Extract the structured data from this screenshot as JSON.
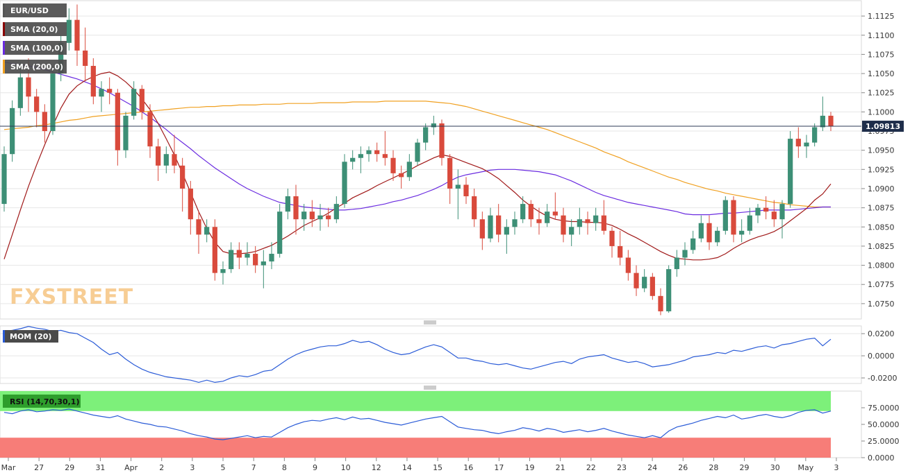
{
  "brand": "FXSTREET",
  "price_tag": "1.09813",
  "legend": [
    {
      "label": "EUR/USD",
      "color": "#555555"
    },
    {
      "label": "SMA (20,0)",
      "color": "#8b0000"
    },
    {
      "label": "SMA (100,0)",
      "color": "#6a2be0"
    },
    {
      "label": "SMA (200,0)",
      "color": "#f0a020"
    }
  ],
  "mom_label": "MOM (20)",
  "rsi_label": "RSI (14,70,30,1)",
  "colors": {
    "bull": "#3d8f76",
    "bear": "#d94a3c",
    "sma20": "#a01818",
    "sma100": "#6a2be0",
    "sma200": "#f0a020",
    "mom": "#2a5bd7",
    "rsi": "#2a5bd7",
    "overbought": "#7df07a",
    "oversold": "#f77d78"
  },
  "chart_data": [
    {
      "type": "candlestick",
      "title": "EUR/USD",
      "ylim": [
        1.073,
        1.1145
      ],
      "y_ticks": [
        "1.1125",
        "1.1100",
        "1.1075",
        "1.1050",
        "1.1025",
        "1.1000",
        "1.0975",
        "1.0950",
        "1.0925",
        "1.0900",
        "1.0875",
        "1.0850",
        "1.0825",
        "1.0800",
        "1.0775",
        "1.0750"
      ],
      "x_tick_labels": [
        "Mar",
        "27",
        "29",
        "31",
        "Apr",
        "2",
        "3",
        "5",
        "7",
        "8",
        "9",
        "10",
        "12",
        "14",
        "15",
        "16",
        "17",
        "19",
        "21",
        "22",
        "23",
        "24",
        "26",
        "28",
        "29",
        "30",
        "May",
        "3"
      ],
      "last_price": 1.09813,
      "ohlc": [
        [
          1.088,
          1.0955,
          1.087,
          1.0945
        ],
        [
          1.0945,
          1.1015,
          1.0935,
          1.1005
        ],
        [
          1.1005,
          1.1065,
          1.0995,
          1.1045
        ],
        [
          1.1045,
          1.107,
          1.1,
          1.102
        ],
        [
          1.102,
          1.103,
          1.098,
          1.1
        ],
        [
          1.1,
          1.101,
          1.096,
          1.0975
        ],
        [
          1.0975,
          1.106,
          1.097,
          1.105
        ],
        [
          1.105,
          1.11,
          1.104,
          1.109
        ],
        [
          1.109,
          1.1135,
          1.108,
          1.112
        ],
        [
          1.112,
          1.114,
          1.106,
          1.108
        ],
        [
          1.108,
          1.111,
          1.104,
          1.106
        ],
        [
          1.106,
          1.107,
          1.101,
          1.102
        ],
        [
          1.102,
          1.104,
          1.1,
          1.103
        ],
        [
          1.103,
          1.1045,
          1.101,
          1.1025
        ],
        [
          1.1025,
          1.103,
          1.093,
          1.095
        ],
        [
          1.095,
          1.1,
          1.094,
          1.0995
        ],
        [
          1.0995,
          1.104,
          1.099,
          1.103
        ],
        [
          1.103,
          1.1035,
          1.099,
          1.1
        ],
        [
          1.1,
          1.101,
          1.094,
          1.0955
        ],
        [
          1.0955,
          1.0965,
          1.091,
          1.093
        ],
        [
          1.093,
          1.0955,
          1.092,
          1.0945
        ],
        [
          1.0945,
          1.097,
          1.092,
          1.093
        ],
        [
          1.093,
          1.094,
          1.087,
          1.09
        ],
        [
          1.09,
          1.091,
          1.084,
          1.086
        ],
        [
          1.086,
          1.087,
          1.0815,
          1.084
        ],
        [
          1.084,
          1.086,
          1.083,
          1.085
        ],
        [
          1.085,
          1.086,
          1.078,
          1.079
        ],
        [
          1.079,
          1.0805,
          1.0775,
          1.0795
        ],
        [
          1.0795,
          1.083,
          1.079,
          1.082
        ],
        [
          1.082,
          1.083,
          1.0795,
          1.081
        ],
        [
          1.081,
          1.083,
          1.08,
          1.0815
        ],
        [
          1.0815,
          1.0825,
          1.079,
          1.08
        ],
        [
          1.08,
          1.082,
          1.077,
          1.0805
        ],
        [
          1.0805,
          1.083,
          1.0795,
          1.0815
        ],
        [
          1.0815,
          1.088,
          1.081,
          1.087
        ],
        [
          1.087,
          1.09,
          1.086,
          1.089
        ],
        [
          1.089,
          1.0905,
          1.084,
          1.086
        ],
        [
          1.086,
          1.088,
          1.0845,
          1.087
        ],
        [
          1.087,
          1.0885,
          1.085,
          1.086
        ],
        [
          1.086,
          1.088,
          1.0845,
          1.0865
        ],
        [
          1.0865,
          1.0875,
          1.085,
          1.086
        ],
        [
          1.086,
          1.089,
          1.0855,
          1.088
        ],
        [
          1.088,
          1.0945,
          1.0875,
          1.0935
        ],
        [
          1.0935,
          1.095,
          1.0925,
          1.094
        ],
        [
          1.094,
          1.0955,
          1.092,
          1.0945
        ],
        [
          1.0945,
          1.0955,
          1.0935,
          1.095
        ],
        [
          1.095,
          1.096,
          1.0935,
          1.0945
        ],
        [
          1.0945,
          1.0975,
          1.093,
          1.094
        ],
        [
          1.094,
          1.095,
          1.091,
          1.092
        ],
        [
          1.092,
          1.093,
          1.09,
          1.0915
        ],
        [
          1.0915,
          1.0945,
          1.091,
          1.0935
        ],
        [
          1.0935,
          1.0965,
          1.093,
          1.096
        ],
        [
          1.096,
          1.0985,
          1.095,
          1.098
        ],
        [
          1.098,
          1.0995,
          1.097,
          1.0985
        ],
        [
          1.0985,
          1.099,
          1.093,
          1.094
        ],
        [
          1.094,
          1.0945,
          1.088,
          1.09
        ],
        [
          1.09,
          1.0925,
          1.086,
          1.0905
        ],
        [
          1.0905,
          1.0915,
          1.088,
          1.089
        ],
        [
          1.089,
          1.09,
          1.085,
          1.086
        ],
        [
          1.086,
          1.087,
          1.082,
          1.0835
        ],
        [
          1.0835,
          1.0875,
          1.083,
          1.0865
        ],
        [
          1.0865,
          1.088,
          1.083,
          1.084
        ],
        [
          1.084,
          1.086,
          1.0815,
          1.085
        ],
        [
          1.085,
          1.087,
          1.084,
          1.086
        ],
        [
          1.086,
          1.089,
          1.0855,
          1.088
        ],
        [
          1.088,
          1.0885,
          1.085,
          1.086
        ],
        [
          1.086,
          1.0875,
          1.084,
          1.0855
        ],
        [
          1.0855,
          1.088,
          1.085,
          1.087
        ],
        [
          1.087,
          1.0895,
          1.086,
          1.0865
        ],
        [
          1.0865,
          1.0875,
          1.083,
          1.084
        ],
        [
          1.084,
          1.086,
          1.0825,
          1.085
        ],
        [
          1.085,
          1.0875,
          1.084,
          1.086
        ],
        [
          1.086,
          1.087,
          1.084,
          1.0855
        ],
        [
          1.0855,
          1.0875,
          1.0845,
          1.0865
        ],
        [
          1.0865,
          1.0885,
          1.084,
          1.0845
        ],
        [
          1.0845,
          1.085,
          1.081,
          1.0825
        ],
        [
          1.0825,
          1.0845,
          1.08,
          1.081
        ],
        [
          1.081,
          1.082,
          1.078,
          1.079
        ],
        [
          1.079,
          1.08,
          1.076,
          1.077
        ],
        [
          1.077,
          1.0795,
          1.0765,
          1.0785
        ],
        [
          1.0785,
          1.079,
          1.0755,
          1.076
        ],
        [
          1.076,
          1.077,
          1.0735,
          1.074
        ],
        [
          1.074,
          1.08,
          1.0738,
          1.0795
        ],
        [
          1.0795,
          1.082,
          1.0785,
          1.081
        ],
        [
          1.081,
          1.083,
          1.08,
          1.082
        ],
        [
          1.082,
          1.0845,
          1.0815,
          1.0835
        ],
        [
          1.0835,
          1.0865,
          1.083,
          1.0855
        ],
        [
          1.0855,
          1.0865,
          1.082,
          1.083
        ],
        [
          1.083,
          1.085,
          1.0825,
          1.0845
        ],
        [
          1.0845,
          1.089,
          1.084,
          1.0885
        ],
        [
          1.0885,
          1.089,
          1.083,
          1.084
        ],
        [
          1.084,
          1.086,
          1.083,
          1.0845
        ],
        [
          1.0845,
          1.0875,
          1.084,
          1.0865
        ],
        [
          1.0865,
          1.088,
          1.0855,
          1.0875
        ],
        [
          1.0875,
          1.089,
          1.086,
          1.087
        ],
        [
          1.087,
          1.0885,
          1.085,
          1.086
        ],
        [
          1.086,
          1.0885,
          1.0835,
          1.088
        ],
        [
          1.088,
          1.0975,
          1.0875,
          1.0965
        ],
        [
          1.0965,
          1.098,
          1.094,
          1.0955
        ],
        [
          1.0955,
          1.097,
          1.094,
          1.096
        ],
        [
          1.096,
          1.0985,
          1.0955,
          1.098
        ],
        [
          1.098,
          1.102,
          1.0975,
          1.0995
        ],
        [
          1.0995,
          1.1,
          1.0975,
          1.0981
        ]
      ],
      "sma20": [
        1.0808,
        1.084,
        1.0872,
        1.0903,
        1.0931,
        1.0957,
        1.0982,
        1.1005,
        1.1023,
        1.1034,
        1.1041,
        1.1046,
        1.105,
        1.1052,
        1.1047,
        1.1039,
        1.1029,
        1.1017,
        1.1003,
        1.0985,
        1.0965,
        1.0944,
        1.092,
        1.0895,
        1.087,
        1.0848,
        1.083,
        1.0818,
        1.0815,
        1.0815,
        1.0816,
        1.0818,
        1.0822,
        1.0826,
        1.0832,
        1.0838,
        1.0845,
        1.0852,
        1.0857,
        1.0862,
        1.0868,
        1.0875,
        1.0881,
        1.0888,
        1.0893,
        1.0898,
        1.0904,
        1.0909,
        1.0914,
        1.0919,
        1.0924,
        1.093,
        1.0935,
        1.094,
        1.0944,
        1.0942,
        1.0938,
        1.0934,
        1.093,
        1.0926,
        1.092,
        1.0913,
        1.0904,
        1.0895,
        1.0885,
        1.0877,
        1.087,
        1.0864,
        1.086,
        1.0858,
        1.0857,
        1.0857,
        1.0856,
        1.0856,
        1.0855,
        1.0852,
        1.0847,
        1.0841,
        1.0836,
        1.083,
        1.0824,
        1.0818,
        1.0813,
        1.0809,
        1.0808,
        1.0807,
        1.0807,
        1.0808,
        1.081,
        1.0815,
        1.0822,
        1.0828,
        1.0833,
        1.0837,
        1.084,
        1.0844,
        1.085,
        1.0858,
        1.0866,
        1.0874,
        1.0885,
        1.0893,
        1.0906
      ],
      "sma100": [
        1.1065,
        1.1063,
        1.1062,
        1.106,
        1.1058,
        1.1055,
        1.1052,
        1.1049,
        1.1046,
        1.1043,
        1.1039,
        1.1035,
        1.103,
        1.1025,
        1.1019,
        1.1013,
        1.1007,
        1.1,
        1.0993,
        1.0985,
        1.0977,
        1.0968,
        1.096,
        1.0952,
        1.0943,
        1.0935,
        1.0927,
        1.092,
        1.0913,
        1.0906,
        1.09,
        1.0895,
        1.089,
        1.0886,
        1.0882,
        1.088,
        1.0878,
        1.0876,
        1.0875,
        1.0874,
        1.0873,
        1.0872,
        1.0872,
        1.0873,
        1.0874,
        1.0876,
        1.0878,
        1.088,
        1.0883,
        1.0885,
        1.0888,
        1.0891,
        1.0895,
        1.0899,
        1.0904,
        1.091,
        1.0915,
        1.0918,
        1.092,
        1.0922,
        1.0924,
        1.0925,
        1.0925,
        1.0925,
        1.0924,
        1.0923,
        1.0922,
        1.092,
        1.0918,
        1.0914,
        1.091,
        1.0905,
        1.09,
        1.0895,
        1.0891,
        1.0888,
        1.0885,
        1.0882,
        1.088,
        1.0878,
        1.0876,
        1.0874,
        1.0872,
        1.087,
        1.0867,
        1.0866,
        1.0866,
        1.0866,
        1.0867,
        1.0868,
        1.0868,
        1.0869,
        1.087,
        1.0871,
        1.0872,
        1.0872,
        1.0872,
        1.0872,
        1.0873,
        1.0874,
        1.0875,
        1.0876,
        1.0876
      ],
      "sma200": [
        1.0977,
        1.0978,
        1.0979,
        1.098,
        1.0982,
        1.0983,
        1.0985,
        1.0987,
        1.0989,
        1.099,
        1.0992,
        1.0994,
        1.0995,
        1.0996,
        1.0997,
        1.0998,
        1.0999,
        1.1,
        1.1001,
        1.1002,
        1.1003,
        1.1004,
        1.1005,
        1.1006,
        1.1006,
        1.1007,
        1.1007,
        1.1008,
        1.1008,
        1.1009,
        1.1009,
        1.1009,
        1.101,
        1.101,
        1.101,
        1.1011,
        1.1011,
        1.1011,
        1.1011,
        1.1012,
        1.1012,
        1.1012,
        1.1012,
        1.1013,
        1.1013,
        1.1013,
        1.1013,
        1.1014,
        1.1014,
        1.1014,
        1.1014,
        1.1014,
        1.1014,
        1.1013,
        1.1012,
        1.1011,
        1.1009,
        1.1007,
        1.1004,
        1.1001,
        1.0998,
        1.0995,
        1.0992,
        1.0989,
        1.0986,
        1.0983,
        1.098,
        1.0977,
        1.0973,
        1.0969,
        1.0965,
        1.0961,
        1.0957,
        1.0953,
        1.0948,
        1.0944,
        1.094,
        1.0935,
        1.0931,
        1.0927,
        1.0923,
        1.0919,
        1.0915,
        1.0912,
        1.0908,
        1.0905,
        1.0902,
        1.0899,
        1.0897,
        1.0894,
        1.0892,
        1.089,
        1.0888,
        1.0886,
        1.0884,
        1.0882,
        1.0881,
        1.0879,
        1.0878,
        1.0877,
        1.0876,
        1.0876,
        1.0876
      ]
    },
    {
      "type": "line",
      "title": "MOM (20)",
      "ylim": [
        -0.025,
        0.027
      ],
      "y_ticks": [
        "0.0200",
        "0.0000",
        "-0.0200"
      ],
      "values": [
        0.022,
        0.023,
        0.0245,
        0.0265,
        0.025,
        0.024,
        0.022,
        0.023,
        0.021,
        0.02,
        0.016,
        0.012,
        0.006,
        0.001,
        0.003,
        -0.003,
        -0.008,
        -0.012,
        -0.015,
        -0.017,
        -0.019,
        -0.02,
        -0.021,
        -0.022,
        -0.024,
        -0.022,
        -0.024,
        -0.023,
        -0.02,
        -0.018,
        -0.019,
        -0.017,
        -0.014,
        -0.013,
        -0.008,
        -0.003,
        0.001,
        0.004,
        0.006,
        0.008,
        0.009,
        0.009,
        0.011,
        0.014,
        0.012,
        0.013,
        0.01,
        0.006,
        0.003,
        0.001,
        0.002,
        0.005,
        0.008,
        0.01,
        0.008,
        0.003,
        -0.002,
        -0.002,
        -0.004,
        -0.005,
        -0.007,
        -0.008,
        -0.007,
        -0.009,
        -0.011,
        -0.012,
        -0.01,
        -0.008,
        -0.006,
        -0.005,
        -0.007,
        -0.003,
        -0.001,
        0.0,
        0.001,
        -0.002,
        -0.004,
        -0.006,
        -0.005,
        -0.007,
        -0.01,
        -0.009,
        -0.008,
        -0.006,
        -0.004,
        -0.001,
        0.0,
        0.001,
        0.003,
        0.002,
        0.005,
        0.004,
        0.006,
        0.008,
        0.009,
        0.007,
        0.01,
        0.011,
        0.013,
        0.015,
        0.016,
        0.009,
        0.015
      ]
    },
    {
      "type": "line",
      "title": "RSI (14,70,30,1)",
      "ylim": [
        0,
        100
      ],
      "y_ticks": [
        "75.0000",
        "50.0000",
        "25.0000",
        "0.0000"
      ],
      "overbought": 70,
      "oversold": 30,
      "values": [
        68,
        66,
        70,
        72,
        69,
        70,
        72,
        71,
        73,
        70,
        67,
        64,
        62,
        60,
        63,
        58,
        55,
        52,
        50,
        47,
        46,
        43,
        40,
        36,
        33,
        31,
        28,
        27,
        29,
        31,
        33,
        30,
        32,
        31,
        38,
        45,
        50,
        54,
        56,
        55,
        58,
        60,
        57,
        61,
        58,
        59,
        56,
        53,
        51,
        49,
        52,
        55,
        58,
        60,
        62,
        54,
        46,
        44,
        42,
        41,
        38,
        36,
        39,
        41,
        45,
        43,
        40,
        44,
        42,
        38,
        40,
        42,
        39,
        41,
        44,
        40,
        37,
        34,
        32,
        30,
        33,
        30,
        40,
        46,
        49,
        52,
        56,
        59,
        62,
        60,
        64,
        58,
        60,
        63,
        65,
        62,
        60,
        63,
        68,
        71,
        72,
        67,
        70
      ]
    }
  ]
}
